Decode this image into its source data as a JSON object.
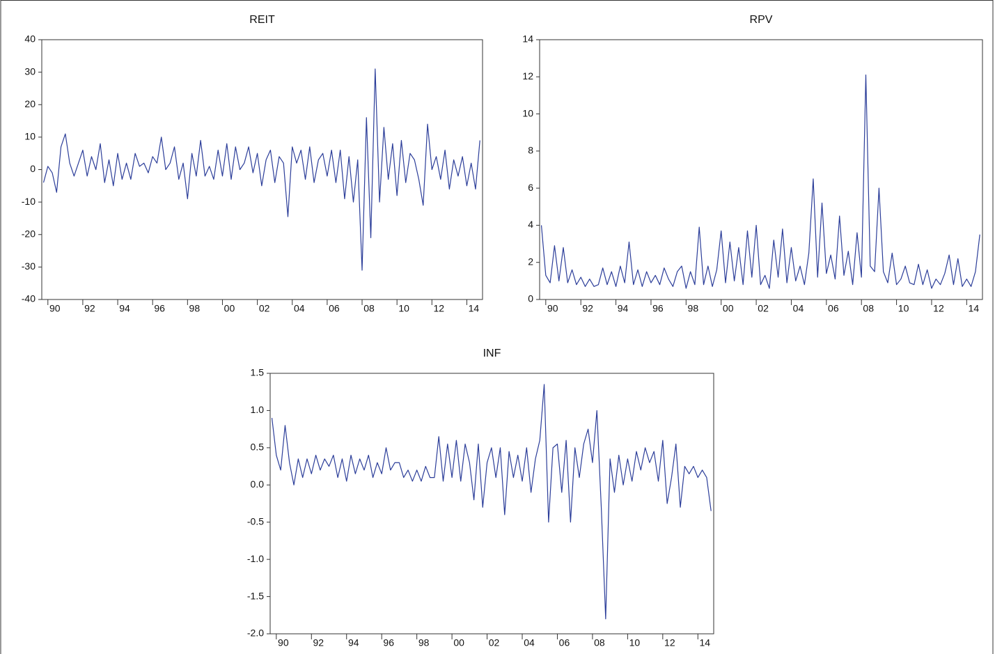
{
  "chart_data": [
    {
      "type": "line",
      "title": "REIT",
      "color": "#2b3d99",
      "x": [
        1989.75,
        1990,
        1990.25,
        1990.5,
        1990.75,
        1991,
        1991.25,
        1991.5,
        1991.75,
        1992,
        1992.25,
        1992.5,
        1992.75,
        1993,
        1993.25,
        1993.5,
        1993.75,
        1994,
        1994.25,
        1994.5,
        1994.75,
        1995,
        1995.25,
        1995.5,
        1995.75,
        1996,
        1996.25,
        1996.5,
        1996.75,
        1997,
        1997.25,
        1997.5,
        1997.75,
        1998,
        1998.25,
        1998.5,
        1998.75,
        1999,
        1999.25,
        1999.5,
        1999.75,
        2000,
        2000.25,
        2000.5,
        2000.75,
        2001,
        2001.25,
        2001.5,
        2001.75,
        2002,
        2002.25,
        2002.5,
        2002.75,
        2003,
        2003.25,
        2003.5,
        2003.75,
        2004,
        2004.25,
        2004.5,
        2004.75,
        2005,
        2005.25,
        2005.5,
        2005.75,
        2006,
        2006.25,
        2006.5,
        2006.75,
        2007,
        2007.25,
        2007.5,
        2007.75,
        2008,
        2008.25,
        2008.5,
        2008.75,
        2009,
        2009.25,
        2009.5,
        2009.75,
        2010,
        2010.25,
        2010.5,
        2010.75,
        2011,
        2011.25,
        2011.5,
        2011.75,
        2012,
        2012.25,
        2012.5,
        2012.75,
        2013,
        2013.25,
        2013.5,
        2013.75,
        2014,
        2014.25,
        2014.5,
        2014.75
      ],
      "values": [
        -4,
        1,
        -1,
        -7,
        7,
        11,
        2,
        -2,
        2,
        6,
        -2,
        4,
        0,
        8,
        -4,
        3,
        -5,
        5,
        -3,
        2,
        -3,
        5,
        1,
        2,
        -1,
        4,
        2,
        10,
        0,
        2,
        7,
        -3,
        2,
        -9,
        5,
        -2,
        9,
        -2,
        1,
        -3,
        6,
        -2,
        8,
        -3,
        7,
        0,
        2,
        7,
        -1,
        5,
        -5,
        3,
        6,
        -4,
        4,
        2,
        -14.5,
        7,
        2,
        6,
        -3,
        7,
        -4,
        3,
        5,
        -2,
        6,
        -4,
        6,
        -9,
        4,
        -10,
        3,
        -31,
        16,
        -21,
        31,
        -10,
        13,
        -3,
        8,
        -8,
        9,
        -4,
        5,
        3,
        -3,
        -11,
        14,
        0,
        4,
        -3,
        6,
        -6,
        3,
        -2,
        4,
        -5,
        2,
        -6,
        9
      ],
      "xlim": [
        1989.65,
        2014.9
      ],
      "xticks": [
        {
          "value": 1990,
          "label": "90"
        },
        {
          "value": 1992,
          "label": "92"
        },
        {
          "value": 1994,
          "label": "94"
        },
        {
          "value": 1996,
          "label": "96"
        },
        {
          "value": 1998,
          "label": "98"
        },
        {
          "value": 2000,
          "label": "00"
        },
        {
          "value": 2002,
          "label": "02"
        },
        {
          "value": 2004,
          "label": "04"
        },
        {
          "value": 2006,
          "label": "06"
        },
        {
          "value": 2008,
          "label": "08"
        },
        {
          "value": 2010,
          "label": "10"
        },
        {
          "value": 2012,
          "label": "12"
        },
        {
          "value": 2014,
          "label": "14"
        }
      ],
      "ylim": [
        -40,
        40
      ],
      "yticks": [
        -40,
        -30,
        -20,
        -10,
        0,
        10,
        20,
        30,
        40
      ]
    },
    {
      "type": "line",
      "title": "RPV",
      "color": "#2b3d99",
      "x": [
        1989.75,
        1990,
        1990.25,
        1990.5,
        1990.75,
        1991,
        1991.25,
        1991.5,
        1991.75,
        1992,
        1992.25,
        1992.5,
        1992.75,
        1993,
        1993.25,
        1993.5,
        1993.75,
        1994,
        1994.25,
        1994.5,
        1994.75,
        1995,
        1995.25,
        1995.5,
        1995.75,
        1996,
        1996.25,
        1996.5,
        1996.75,
        1997,
        1997.25,
        1997.5,
        1997.75,
        1998,
        1998.25,
        1998.5,
        1998.75,
        1999,
        1999.25,
        1999.5,
        1999.75,
        2000,
        2000.25,
        2000.5,
        2000.75,
        2001,
        2001.25,
        2001.5,
        2001.75,
        2002,
        2002.25,
        2002.5,
        2002.75,
        2003,
        2003.25,
        2003.5,
        2003.75,
        2004,
        2004.25,
        2004.5,
        2004.75,
        2005,
        2005.25,
        2005.5,
        2005.75,
        2006,
        2006.25,
        2006.5,
        2006.75,
        2007,
        2007.25,
        2007.5,
        2007.75,
        2008,
        2008.25,
        2008.5,
        2008.75,
        2009,
        2009.25,
        2009.5,
        2009.75,
        2010,
        2010.25,
        2010.5,
        2010.75,
        2011,
        2011.25,
        2011.5,
        2011.75,
        2012,
        2012.25,
        2012.5,
        2012.75,
        2013,
        2013.25,
        2013.5,
        2013.75,
        2014,
        2014.25,
        2014.5,
        2014.75
      ],
      "values": [
        4,
        1.3,
        0.9,
        2.9,
        1,
        2.8,
        0.9,
        1.6,
        0.8,
        1.2,
        0.7,
        1.1,
        0.7,
        0.8,
        1.7,
        0.8,
        1.5,
        0.7,
        1.8,
        0.9,
        3.1,
        0.8,
        1.6,
        0.7,
        1.5,
        0.9,
        1.3,
        0.8,
        1.7,
        1.1,
        0.7,
        1.5,
        1.8,
        0.6,
        1.5,
        0.8,
        3.9,
        0.8,
        1.8,
        0.7,
        1.6,
        3.7,
        0.9,
        3.1,
        1,
        2.8,
        0.8,
        3.7,
        1.2,
        4,
        0.8,
        1.3,
        0.6,
        3.2,
        1.2,
        3.8,
        0.9,
        2.8,
        1,
        1.8,
        0.8,
        2.5,
        6.5,
        1.2,
        5.2,
        1.4,
        2.4,
        1.1,
        4.5,
        1.3,
        2.6,
        0.8,
        3.6,
        1.2,
        12.1,
        1.8,
        1.5,
        6,
        1.5,
        0.9,
        2.5,
        0.8,
        1.1,
        1.8,
        0.9,
        0.8,
        1.9,
        0.8,
        1.6,
        0.6,
        1.1,
        0.8,
        1.4,
        2.4,
        0.8,
        2.2,
        0.7,
        1.1,
        0.7,
        1.5,
        3.5
      ],
      "xlim": [
        1989.65,
        2014.9
      ],
      "xticks": [
        {
          "value": 1990,
          "label": "90"
        },
        {
          "value": 1992,
          "label": "92"
        },
        {
          "value": 1994,
          "label": "94"
        },
        {
          "value": 1996,
          "label": "96"
        },
        {
          "value": 1998,
          "label": "98"
        },
        {
          "value": 2000,
          "label": "00"
        },
        {
          "value": 2002,
          "label": "02"
        },
        {
          "value": 2004,
          "label": "04"
        },
        {
          "value": 2006,
          "label": "06"
        },
        {
          "value": 2008,
          "label": "08"
        },
        {
          "value": 2010,
          "label": "10"
        },
        {
          "value": 2012,
          "label": "12"
        },
        {
          "value": 2014,
          "label": "14"
        }
      ],
      "ylim": [
        0,
        14
      ],
      "yticks": [
        0,
        2,
        4,
        6,
        8,
        10,
        12,
        14
      ]
    },
    {
      "type": "line",
      "title": "INF",
      "color": "#2b3d99",
      "x": [
        1989.75,
        1990,
        1990.25,
        1990.5,
        1990.75,
        1991,
        1991.25,
        1991.5,
        1991.75,
        1992,
        1992.25,
        1992.5,
        1992.75,
        1993,
        1993.25,
        1993.5,
        1993.75,
        1994,
        1994.25,
        1994.5,
        1994.75,
        1995,
        1995.25,
        1995.5,
        1995.75,
        1996,
        1996.25,
        1996.5,
        1996.75,
        1997,
        1997.25,
        1997.5,
        1997.75,
        1998,
        1998.25,
        1998.5,
        1998.75,
        1999,
        1999.25,
        1999.5,
        1999.75,
        2000,
        2000.25,
        2000.5,
        2000.75,
        2001,
        2001.25,
        2001.5,
        2001.75,
        2002,
        2002.25,
        2002.5,
        2002.75,
        2003,
        2003.25,
        2003.5,
        2003.75,
        2004,
        2004.25,
        2004.5,
        2004.75,
        2005,
        2005.25,
        2005.5,
        2005.75,
        2006,
        2006.25,
        2006.5,
        2006.75,
        2007,
        2007.25,
        2007.5,
        2007.75,
        2008,
        2008.25,
        2008.5,
        2008.75,
        2009,
        2009.25,
        2009.5,
        2009.75,
        2010,
        2010.25,
        2010.5,
        2010.75,
        2011,
        2011.25,
        2011.5,
        2011.75,
        2012,
        2012.25,
        2012.5,
        2012.75,
        2013,
        2013.25,
        2013.5,
        2013.75,
        2014,
        2014.25,
        2014.5,
        2014.75
      ],
      "values": [
        0.9,
        0.4,
        0.2,
        0.8,
        0.3,
        0,
        0.35,
        0.1,
        0.35,
        0.15,
        0.4,
        0.2,
        0.35,
        0.25,
        0.4,
        0.1,
        0.35,
        0.05,
        0.4,
        0.15,
        0.35,
        0.2,
        0.4,
        0.1,
        0.3,
        0.15,
        0.5,
        0.2,
        0.3,
        0.3,
        0.1,
        0.2,
        0.05,
        0.2,
        0.05,
        0.25,
        0.1,
        0.1,
        0.65,
        0.05,
        0.55,
        0.1,
        0.6,
        0.05,
        0.55,
        0.3,
        -0.2,
        0.55,
        -0.3,
        0.3,
        0.5,
        0.1,
        0.5,
        -0.4,
        0.45,
        0.1,
        0.4,
        0.05,
        0.5,
        -0.1,
        0.35,
        0.6,
        1.35,
        -0.5,
        0.5,
        0.55,
        -0.1,
        0.6,
        -0.5,
        0.5,
        0.1,
        0.55,
        0.75,
        0.3,
        1.0,
        -0.3,
        -1.8,
        0.35,
        -0.1,
        0.4,
        0.0,
        0.35,
        0.05,
        0.45,
        0.2,
        0.5,
        0.3,
        0.45,
        0.05,
        0.6,
        -0.25,
        0.1,
        0.55,
        -0.3,
        0.25,
        0.15,
        0.25,
        0.1,
        0.2,
        0.1,
        -0.35
      ],
      "xlim": [
        1989.65,
        2014.9
      ],
      "xticks": [
        {
          "value": 1990,
          "label": "90"
        },
        {
          "value": 1992,
          "label": "92"
        },
        {
          "value": 1994,
          "label": "94"
        },
        {
          "value": 1996,
          "label": "96"
        },
        {
          "value": 1998,
          "label": "98"
        },
        {
          "value": 2000,
          "label": "00"
        },
        {
          "value": 2002,
          "label": "02"
        },
        {
          "value": 2004,
          "label": "04"
        },
        {
          "value": 2006,
          "label": "06"
        },
        {
          "value": 2008,
          "label": "08"
        },
        {
          "value": 2010,
          "label": "10"
        },
        {
          "value": 2012,
          "label": "12"
        },
        {
          "value": 2014,
          "label": "14"
        }
      ],
      "ylim": [
        -2,
        1.5
      ],
      "yticks": [
        {
          "value": -2,
          "label": "-2.0"
        },
        -1.5,
        {
          "value": -1,
          "label": "-1.0"
        },
        -0.5,
        {
          "value": 0,
          "label": "0.0"
        },
        0.5,
        {
          "value": 1,
          "label": "1.0"
        },
        1.5
      ]
    }
  ]
}
